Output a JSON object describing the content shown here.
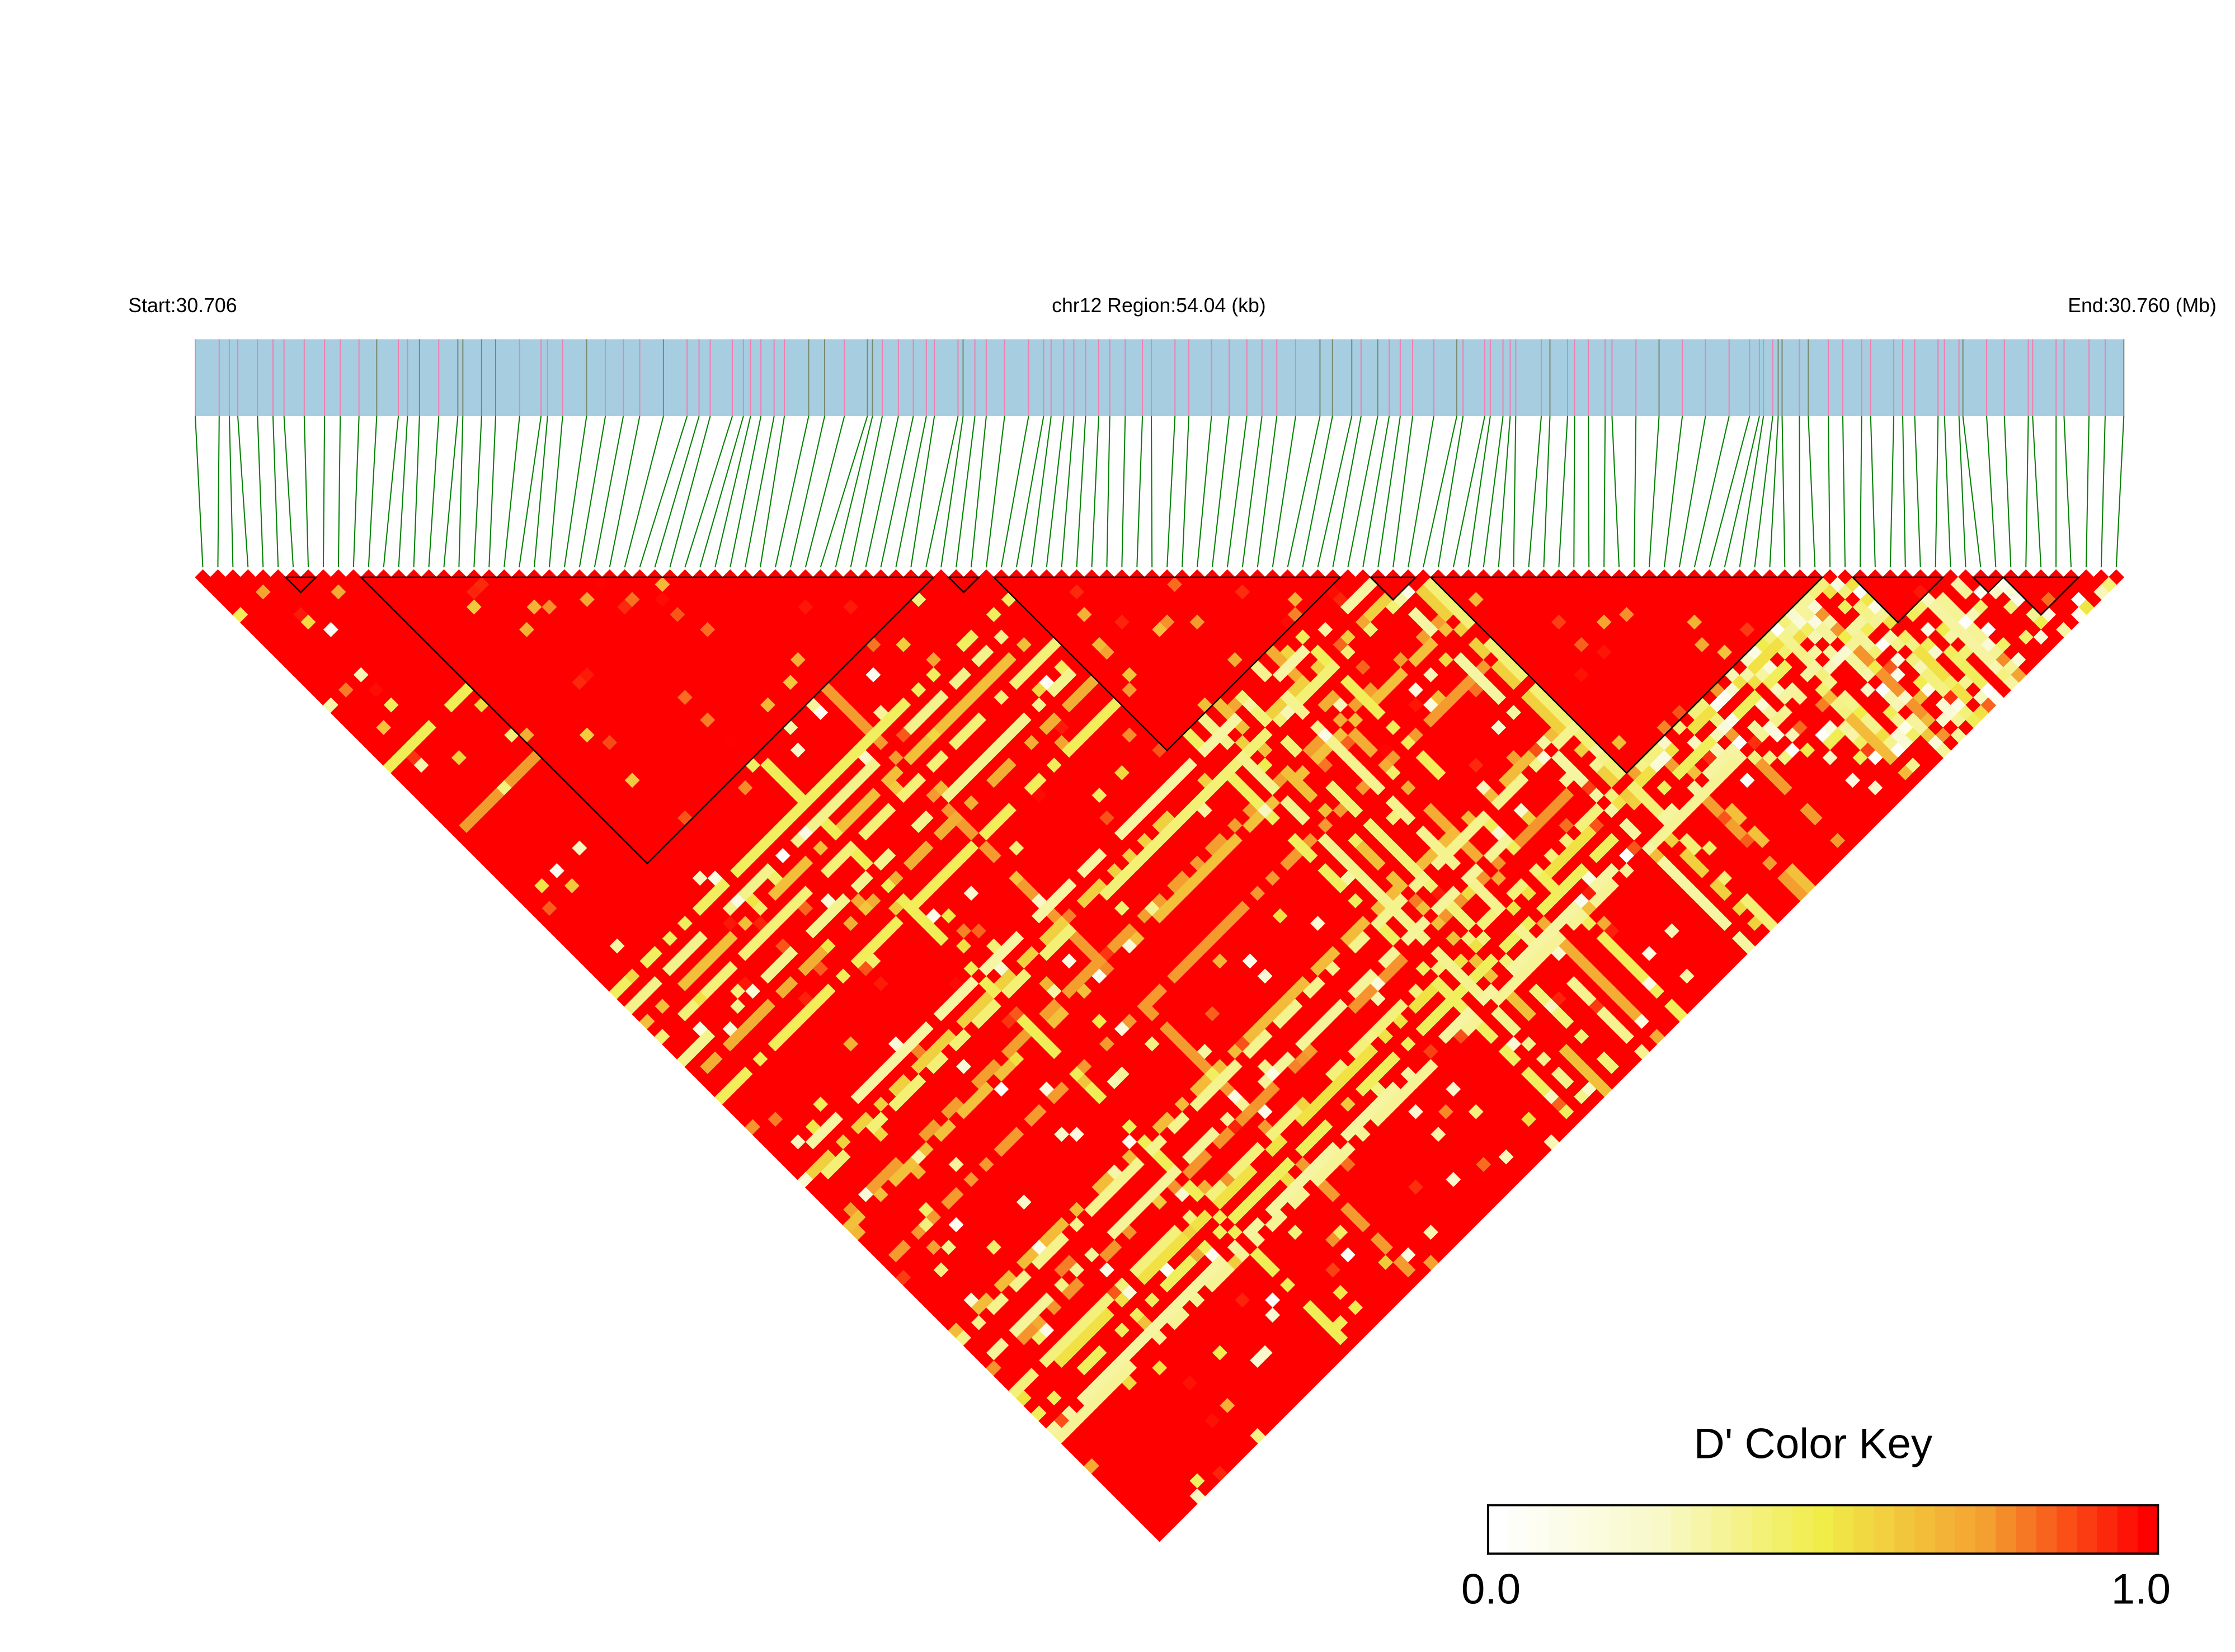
{
  "chart_data": {
    "type": "heatmap",
    "subtype": "LD triangle heatmap",
    "header": {
      "start_label": "Start:30.706",
      "region_label": "chr12 Region:54.04 (kb)",
      "end_label": "End:30.760 (Mb)"
    },
    "chromosome": "chr12",
    "region_start_mb": 30.706,
    "region_end_mb": 30.76,
    "region_kb": 54.04,
    "snp_count": 128,
    "ld_blocks_snp_index_ranges": [
      [
        6,
        7
      ],
      [
        11,
        48
      ],
      [
        50,
        51
      ],
      [
        53,
        75
      ],
      [
        78,
        80
      ],
      [
        82,
        107
      ],
      [
        110,
        115
      ],
      [
        118,
        119
      ],
      [
        120,
        124
      ]
    ],
    "color_key": {
      "title": "D' Color Key",
      "min_label": "0.0",
      "max_label": "1.0",
      "range": [
        0,
        1
      ],
      "colors": [
        "#ffffff",
        "#f8f8c8",
        "#f0ec48",
        "#f4a030",
        "#ff0000"
      ]
    },
    "colors": {
      "gene_bar": "#a6cde0",
      "snp_marker_line": "#f080b0",
      "connector_line": "#008000",
      "block_outline": "#000000"
    }
  }
}
